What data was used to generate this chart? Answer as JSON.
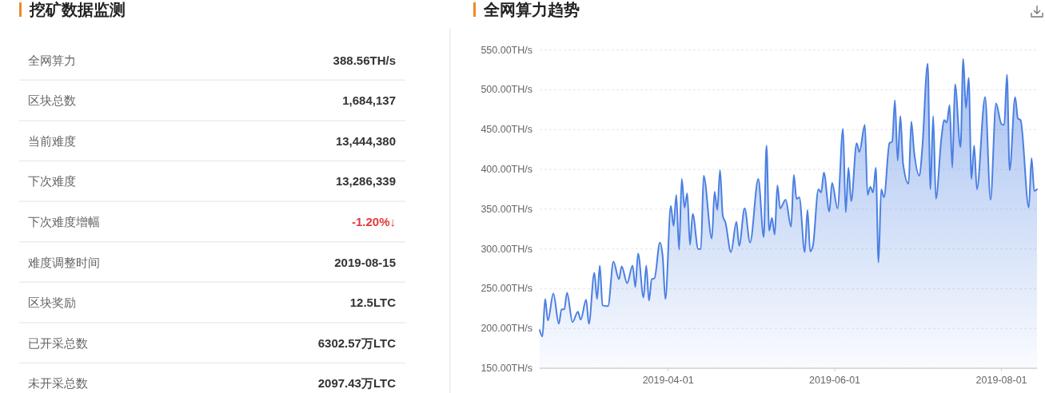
{
  "chart_data": [
    {
      "type": "other",
      "title": "挖矿数据监测",
      "annotations": [
        "全网算力",
        "388.56TH/s",
        "区块总数",
        "1,684,137",
        "当前难度",
        "13,444,380",
        "下次难度",
        "13,286,339",
        "下次难度增幅",
        "-1.20%↓",
        "难度调整时间",
        "2019-08-15",
        "区块奖励",
        "12.5LTC",
        "已开采总数",
        "6302.57万LTC",
        "未开采总数",
        "2097.43万LTC"
      ],
      "colors": [
        "#666666",
        "#333333",
        "#666666",
        "#333333",
        "#666666",
        "#333333",
        "#666666",
        "#333333",
        "#666666",
        "#e5393a",
        "#666666",
        "#333333",
        "#666666",
        "#333333",
        "#666666",
        "#333333",
        "#666666",
        "#333333"
      ]
    },
    {
      "type": "area",
      "title": "全网算力趋势",
      "x": [
        "2019-02-13",
        "2019-02-14",
        "2019-02-15",
        "2019-02-16",
        "2019-02-18",
        "2019-02-20",
        "2019-02-21",
        "2019-02-22",
        "2019-02-23",
        "2019-02-25",
        "2019-02-27",
        "2019-02-28",
        "2019-03-02",
        "2019-03-03",
        "2019-03-05",
        "2019-03-06",
        "2019-03-07",
        "2019-03-08",
        "2019-03-10",
        "2019-03-12",
        "2019-03-14",
        "2019-03-15",
        "2019-03-17",
        "2019-03-19",
        "2019-03-20",
        "2019-03-21",
        "2019-03-23",
        "2019-03-24",
        "2019-03-25",
        "2019-03-26",
        "2019-03-27",
        "2019-03-29",
        "2019-03-30",
        "2019-03-31",
        "2019-04-02",
        "2019-04-03",
        "2019-04-04",
        "2019-04-05",
        "2019-04-06",
        "2019-04-07",
        "2019-04-08",
        "2019-04-09",
        "2019-04-10",
        "2019-04-12",
        "2019-04-13",
        "2019-04-14",
        "2019-04-17",
        "2019-04-18",
        "2019-04-19",
        "2019-04-20",
        "2019-04-21",
        "2019-04-22",
        "2019-04-24",
        "2019-04-26",
        "2019-04-27",
        "2019-04-29",
        "2019-05-01",
        "2019-05-04",
        "2019-05-06",
        "2019-05-07",
        "2019-05-08",
        "2019-05-09",
        "2019-05-10",
        "2019-05-11",
        "2019-05-12",
        "2019-05-14",
        "2019-05-16",
        "2019-05-17",
        "2019-05-18",
        "2019-05-19",
        "2019-05-21",
        "2019-05-22",
        "2019-05-23",
        "2019-05-24",
        "2019-05-26",
        "2019-05-27",
        "2019-05-28",
        "2019-05-30",
        "2019-05-31",
        "2019-06-02",
        "2019-06-04",
        "2019-06-05",
        "2019-06-06",
        "2019-06-07",
        "2019-06-09",
        "2019-06-10",
        "2019-06-12",
        "2019-06-13",
        "2019-06-14",
        "2019-06-15",
        "2019-06-16",
        "2019-06-17",
        "2019-06-18",
        "2019-06-19",
        "2019-06-21",
        "2019-06-22",
        "2019-06-23",
        "2019-06-24",
        "2019-06-25",
        "2019-06-26",
        "2019-06-28",
        "2019-06-29",
        "2019-06-30",
        "2019-07-02",
        "2019-07-03",
        "2019-07-05",
        "2019-07-06",
        "2019-07-07",
        "2019-07-08",
        "2019-07-10",
        "2019-07-11",
        "2019-07-12",
        "2019-07-13",
        "2019-07-14",
        "2019-07-15",
        "2019-07-17",
        "2019-07-18",
        "2019-07-19",
        "2019-07-20",
        "2019-07-21",
        "2019-07-22",
        "2019-07-23",
        "2019-07-26",
        "2019-07-28",
        "2019-07-30",
        "2019-08-01",
        "2019-08-02",
        "2019-08-03",
        "2019-08-04",
        "2019-08-06",
        "2019-08-07",
        "2019-08-08",
        "2019-08-11",
        "2019-08-12",
        "2019-08-13",
        "2019-08-14"
      ],
      "series": [
        {
          "color": "#4a7fe2",
          "values": [
            198,
            190,
            237,
            210,
            244,
            206,
            224,
            224,
            245,
            208,
            221,
            211,
            236,
            206,
            270,
            237,
            279,
            229,
            228,
            284,
            262,
            278,
            257,
            279,
            252,
            294,
            239,
            279,
            235,
            262,
            263,
            308,
            291,
            237,
            354,
            329,
            368,
            299,
            388,
            352,
            370,
            305,
            344,
            300,
            300,
            392,
            313,
            372,
            349,
            399,
            342,
            333,
            296,
            334,
            304,
            351,
            308,
            388,
            315,
            430,
            323,
            339,
            318,
            380,
            351,
            362,
            328,
            393,
            363,
            365,
            296,
            349,
            297,
            304,
            375,
            371,
            396,
            347,
            383,
            351,
            451,
            346,
            402,
            360,
            433,
            422,
            456,
            368,
            378,
            371,
            402,
            283,
            375,
            365,
            433,
            435,
            487,
            411,
            467,
            407,
            382,
            460,
            423,
            392,
            426,
            533,
            375,
            467,
            363,
            439,
            462,
            459,
            481,
            402,
            507,
            428,
            539,
            477,
            515,
            388,
            430,
            375,
            491,
            362,
            483,
            457,
            456,
            519,
            399,
            491,
            464,
            462,
            352,
            414,
            373,
            375
          ]
        }
      ],
      "xlim": [
        "2019-02-13",
        "2019-08-14"
      ],
      "xticks": [
        "2019-04-01",
        "2019-06-01",
        "2019-08-01"
      ],
      "ylim": [
        150,
        550
      ],
      "yticks": [
        {
          "value": 150,
          "label": "150.00TH/s"
        },
        {
          "value": 200,
          "label": "200.00TH/s"
        },
        {
          "value": 250,
          "label": "250.00TH/s"
        },
        {
          "value": 300,
          "label": "300.00TH/s"
        },
        {
          "value": 350,
          "label": "350.00TH/s"
        },
        {
          "value": 400,
          "label": "400.00TH/s"
        },
        {
          "value": 450,
          "label": "450.00TH/s"
        },
        {
          "value": 500,
          "label": "500.00TH/s"
        },
        {
          "value": 550,
          "label": "550.00TH/s"
        }
      ],
      "grid": "y"
    }
  ]
}
